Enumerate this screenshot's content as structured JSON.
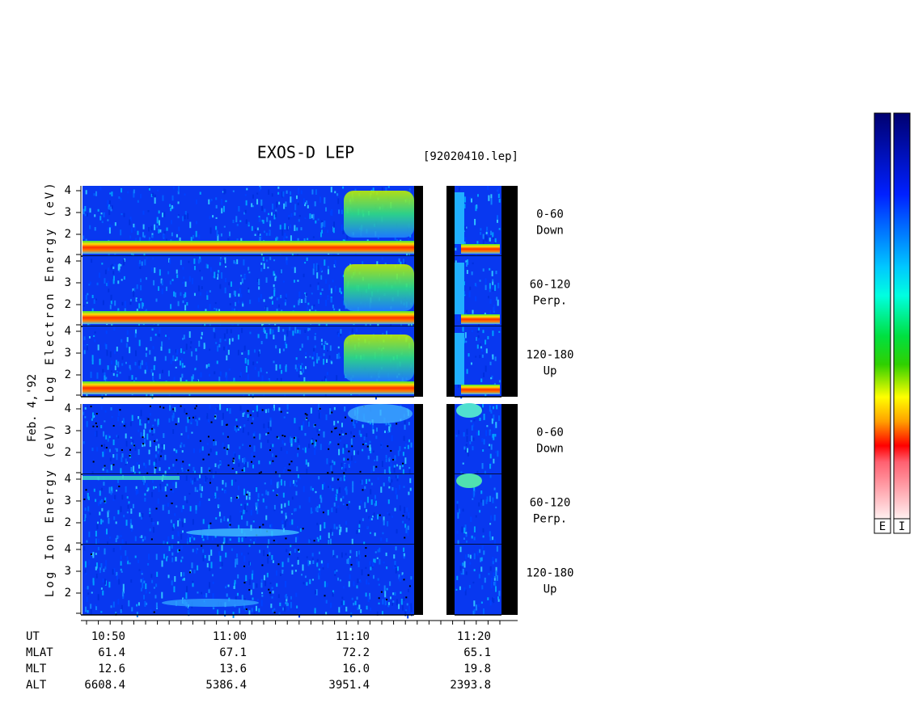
{
  "header": {
    "title": "EXOS-D LEP",
    "file": "[92020410.lep]"
  },
  "date": "Feb. 4,'92",
  "groups": [
    {
      "axis_label": "Log Electron Energy (eV)",
      "panels": [
        {
          "angle": "0-60",
          "direction": "Down",
          "ticks": [
            "4",
            "3",
            "2"
          ]
        },
        {
          "angle": "60-120",
          "direction": "Perp.",
          "ticks": [
            "4",
            "3",
            "2"
          ]
        },
        {
          "angle": "120-180",
          "direction": "Up",
          "ticks": [
            "4",
            "3",
            "2"
          ]
        }
      ]
    },
    {
      "axis_label": "Log Ion Energy (eV)",
      "panels": [
        {
          "angle": "0-60",
          "direction": "Down",
          "ticks": [
            "4",
            "3",
            "2"
          ]
        },
        {
          "angle": "60-120",
          "direction": "Perp.",
          "ticks": [
            "4",
            "3",
            "2"
          ]
        },
        {
          "angle": "120-180",
          "direction": "Up",
          "ticks": [
            "4",
            "3",
            "2"
          ]
        }
      ]
    }
  ],
  "time_axis": {
    "rows": [
      {
        "label": "UT",
        "values": [
          "10:50",
          "11:00",
          "11:10",
          "11:20"
        ]
      },
      {
        "label": "MLAT",
        "values": [
          "61.4",
          "67.1",
          "72.2",
          "65.1"
        ]
      },
      {
        "label": "MLT",
        "values": [
          "12.6",
          "13.6",
          "16.0",
          "19.8"
        ]
      },
      {
        "label": "ALT",
        "values": [
          "6608.4",
          "5386.4",
          "3951.4",
          "2393.8"
        ]
      }
    ]
  },
  "colorbars": [
    "E",
    "I"
  ]
}
